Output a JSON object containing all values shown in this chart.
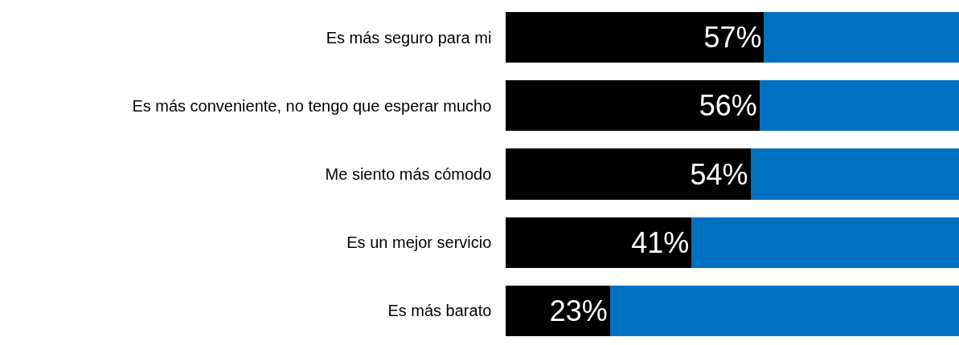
{
  "chart_data": {
    "type": "bar",
    "orientation": "horizontal",
    "stacked": true,
    "categories": [
      "Es más seguro para mi",
      "Es más conveniente, no tengo que esperar mucho",
      "Me siento más cómodo",
      "Es un mejor servicio",
      "Es más barato"
    ],
    "series": [
      {
        "color": "#000000",
        "values": [
          57,
          56,
          54,
          41,
          23
        ],
        "value_labels": [
          "57%",
          "56%",
          "54%",
          "41%",
          "23%"
        ]
      },
      {
        "color": "#0070c0",
        "values": [
          43,
          44,
          46,
          59,
          77
        ]
      }
    ],
    "xlim": [
      0,
      100
    ],
    "tick_labels": "y"
  }
}
